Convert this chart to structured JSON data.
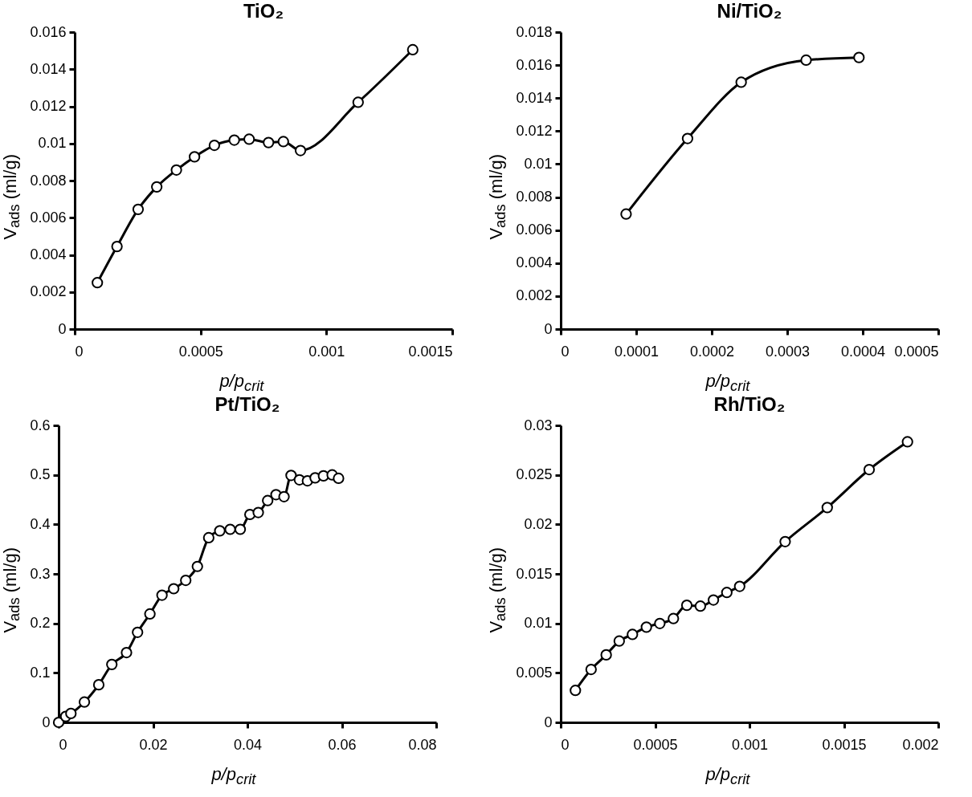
{
  "chart_data": [
    {
      "type": "line",
      "title": "TiO₂",
      "xlabel": "p/p$_{crit}$",
      "ylabel": "V$_{ads}$ (ml/g)",
      "marker": "circle",
      "line_style": "solid",
      "xlim": [
        0,
        0.0015
      ],
      "xticks": [
        0,
        0.0005,
        0.001,
        0.0015
      ],
      "ylim": [
        0,
        0.016
      ],
      "yticks": [
        0,
        0.002,
        0.004,
        0.006,
        0.008,
        0.01,
        0.012,
        0.014,
        0.016
      ],
      "series": [
        {
          "color": "#000000",
          "x": [
            9e-05,
            0.000168,
            0.000252,
            0.000326,
            0.000404,
            0.000476,
            0.000555,
            0.000634,
            0.000693,
            0.00077,
            0.000829,
            0.000897,
            0.001126,
            0.001343
          ],
          "values": [
            0.0025,
            0.00445,
            0.00645,
            0.00766,
            0.00857,
            0.00928,
            0.0099,
            0.01018,
            0.01023,
            0.01005,
            0.0101,
            0.00962,
            0.01222,
            0.01505
          ]
        }
      ]
    },
    {
      "type": "line",
      "title": "Ni/TiO₂",
      "xlabel": "p/p$_{crit}$",
      "ylabel": "V$_{ads}$ (ml/g)",
      "marker": "circle",
      "line_style": "solid",
      "xlim": [
        0,
        0.0005
      ],
      "xticks": [
        0,
        0.0001,
        0.0002,
        0.0003,
        0.0004,
        0.0005
      ],
      "ylim": [
        0,
        0.018
      ],
      "yticks": [
        0,
        0.002,
        0.004,
        0.006,
        0.008,
        0.01,
        0.012,
        0.014,
        0.016,
        0.018
      ],
      "series": [
        {
          "color": "#000000",
          "x": [
            8.66e-05,
            0.000168,
            0.000239,
            0.000325,
            0.000395
          ],
          "values": [
            0.00697,
            0.01155,
            0.01496,
            0.0163,
            0.01646
          ]
        }
      ]
    },
    {
      "type": "line",
      "title": "Pt/TiO₂",
      "xlabel": "p/p$_{crit}$",
      "ylabel": "V$_{ads}$ (ml/g)",
      "marker": "circle",
      "line_style": "solid",
      "xlim": [
        0,
        0.08
      ],
      "xticks": [
        0,
        0.02,
        0.04,
        0.06,
        0.08
      ],
      "ylim": [
        0,
        0.6
      ],
      "yticks": [
        0,
        0.1,
        0.2,
        0.3,
        0.4,
        0.5,
        0.6
      ],
      "series": [
        {
          "color": "#000000",
          "x": [
            0,
            0.0015,
            0.0026,
            0.00546,
            0.0085,
            0.01127,
            0.01438,
            0.01672,
            0.01934,
            0.0219,
            0.02438,
            0.02693,
            0.0294,
            0.0318,
            0.03415,
            0.03635,
            0.03848,
            0.04053,
            0.0423,
            0.04429,
            0.04606,
            0.04776,
            0.04925,
            0.05102,
            0.05272,
            0.05435,
            0.05612,
            0.05796,
            0.05931
          ],
          "values": [
            0,
            0.012,
            0.018,
            0.041,
            0.076,
            0.117,
            0.141,
            0.182,
            0.219,
            0.257,
            0.27,
            0.287,
            0.315,
            0.373,
            0.387,
            0.39,
            0.39,
            0.42,
            0.424,
            0.448,
            0.46,
            0.456,
            0.499,
            0.49,
            0.488,
            0.494,
            0.498,
            0.5,
            0.493
          ]
        }
      ]
    },
    {
      "type": "line",
      "title": "Rh/TiO₂",
      "xlabel": "p/p$_{crit}$",
      "ylabel": "V$_{ads}$ (ml/g)",
      "marker": "circle",
      "line_style": "solid",
      "xlim": [
        0,
        0.002
      ],
      "xticks": [
        0,
        0.0005,
        0.001,
        0.0015,
        0.002
      ],
      "ylim": [
        0,
        0.03
      ],
      "yticks": [
        0,
        0.005,
        0.01,
        0.015,
        0.02,
        0.025,
        0.03
      ],
      "series": [
        {
          "color": "#000000",
          "x": [
            7.78e-05,
            0.000161,
            0.000241,
            0.00031,
            0.00038,
            0.000454,
            0.000525,
            0.000597,
            0.000668,
            0.00074,
            0.000809,
            0.00088,
            0.000948,
            0.001189,
            0.001412,
            0.001634,
            0.001837
          ],
          "values": [
            0.00323,
            0.00535,
            0.00682,
            0.00821,
            0.00888,
            0.00962,
            0.00999,
            0.01048,
            0.01183,
            0.01174,
            0.01236,
            0.01312,
            0.01374,
            0.01826,
            0.0217,
            0.02554,
            0.02834
          ]
        }
      ]
    }
  ]
}
